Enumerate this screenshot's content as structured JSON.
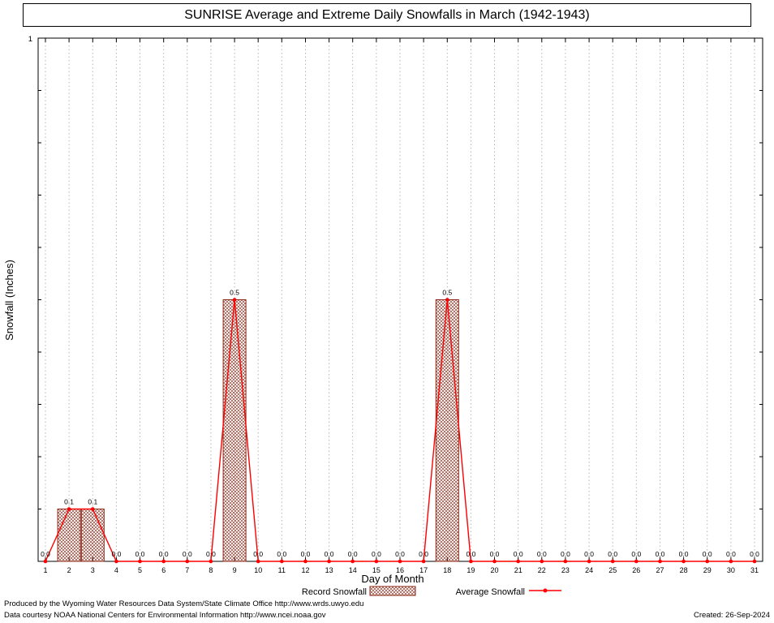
{
  "chart_data": {
    "type": "bar",
    "title": "SUNRISE Average and Extreme Daily Snowfalls in March (1942-1943)",
    "xlabel": "Day of Month",
    "ylabel": "Snowfall (Inches)",
    "x": [
      1,
      2,
      3,
      4,
      5,
      6,
      7,
      8,
      9,
      10,
      11,
      12,
      13,
      14,
      15,
      16,
      17,
      18,
      19,
      20,
      21,
      22,
      23,
      24,
      25,
      26,
      27,
      28,
      29,
      30,
      31
    ],
    "ylim": [
      0,
      1
    ],
    "yticks": [
      {
        "value": 1,
        "label": "1"
      }
    ],
    "grid": "vertical-dotted",
    "series": [
      {
        "name": "Record Snowfall",
        "type": "bar",
        "color": "#8b2513",
        "hatch": "crosshatch",
        "values": [
          0.0,
          0.1,
          0.1,
          0.0,
          0.0,
          0.0,
          0.0,
          0.0,
          0.5,
          0.0,
          0.0,
          0.0,
          0.0,
          0.0,
          0.0,
          0.0,
          0.0,
          0.5,
          0.0,
          0.0,
          0.0,
          0.0,
          0.0,
          0.0,
          0.0,
          0.0,
          0.0,
          0.0,
          0.0,
          0.0,
          0.0
        ]
      },
      {
        "name": "Average Snowfall",
        "type": "line",
        "color": "#ff0000",
        "values": [
          0.0,
          0.1,
          0.1,
          0.0,
          0.0,
          0.0,
          0.0,
          0.0,
          0.5,
          0.0,
          0.0,
          0.0,
          0.0,
          0.0,
          0.0,
          0.0,
          0.0,
          0.5,
          0.0,
          0.0,
          0.0,
          0.0,
          0.0,
          0.0,
          0.0,
          0.0,
          0.0,
          0.0,
          0.0,
          0.0,
          0.0
        ]
      }
    ],
    "point_labels": [
      "0.0",
      "0.1",
      "0.1",
      "0.0",
      "0.0",
      "0.0",
      "0.0",
      "0.0",
      "0.5",
      "0.0",
      "0.0",
      "0.0",
      "0.0",
      "0.0",
      "0.0",
      "0.0",
      "0.0",
      "0.5",
      "0.0",
      "0.0",
      "0.0",
      "0.0",
      "0.0",
      "0.0",
      "0.0",
      "0.0",
      "0.0",
      "0.0",
      "0.0",
      "0.0",
      "0.0"
    ]
  },
  "footer": {
    "line1": "Produced by the Wyoming Water Resources Data System/State Climate Office http://www.wrds.uwyo.edu",
    "line2": "Data courtesy NOAA National Centers for Environmental Information http://www.ncei.noaa.gov",
    "created": "Created: 26-Sep-2024"
  }
}
